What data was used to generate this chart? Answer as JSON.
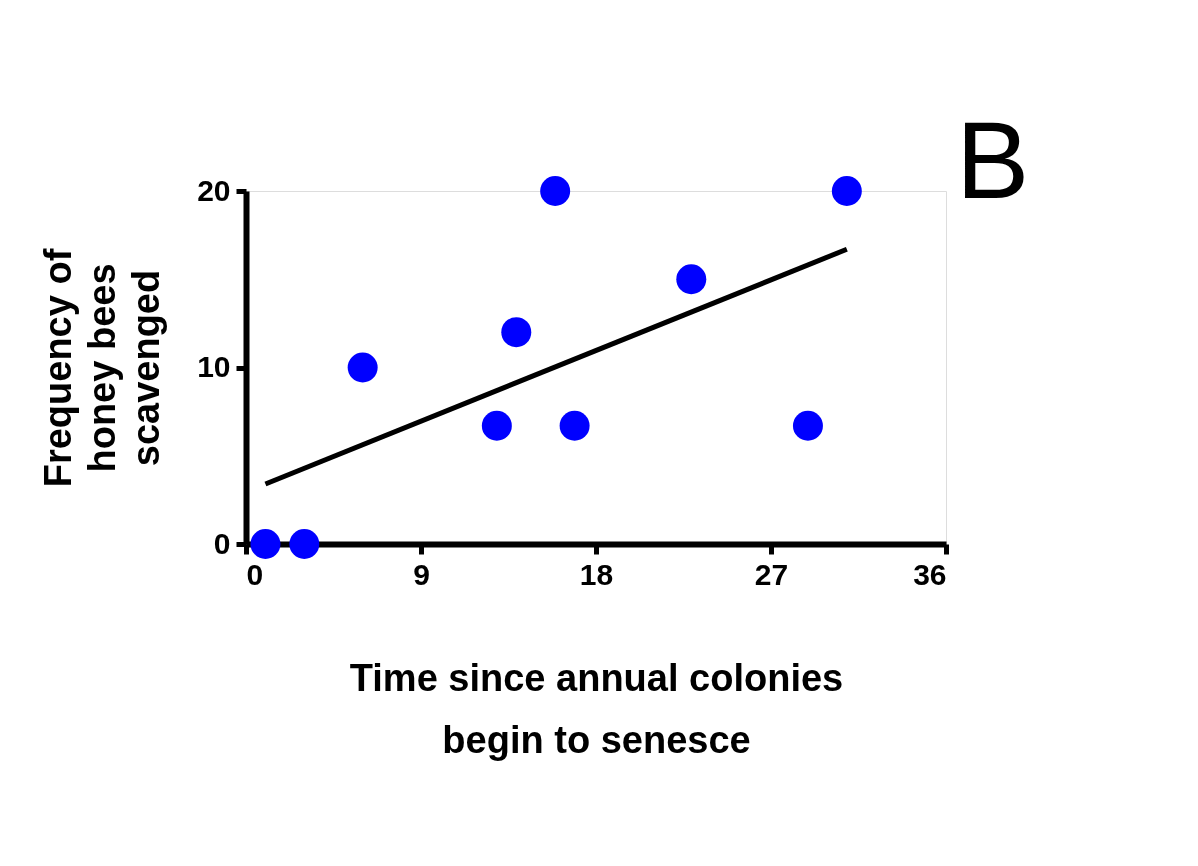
{
  "chart_data": {
    "type": "scatter",
    "xlabel": "Time since annual colonies begin to senesce",
    "ylabel": "Frequency of honey bees scavenged",
    "annotations": [
      "B"
    ],
    "xlim": [
      0,
      36
    ],
    "ylim": [
      0,
      20
    ],
    "xticks": [
      0,
      9,
      18,
      27,
      36
    ],
    "yticks": [
      0,
      10,
      20
    ],
    "grid": false,
    "series": [
      {
        "color": "#0000ff",
        "marker": "circle",
        "x": [
          1,
          3,
          6,
          12.9,
          13.9,
          15.9,
          16.9,
          22.9,
          28.9,
          30.9
        ],
        "values": [
          0,
          0,
          10,
          6.7,
          12,
          20,
          6.7,
          15,
          6.7,
          20
        ]
      },
      {
        "type": "line",
        "color": "#000000",
        "line_style": "solid",
        "marker": "none",
        "x": [
          1,
          30.9
        ],
        "values": [
          3.4,
          16.7
        ]
      }
    ]
  }
}
